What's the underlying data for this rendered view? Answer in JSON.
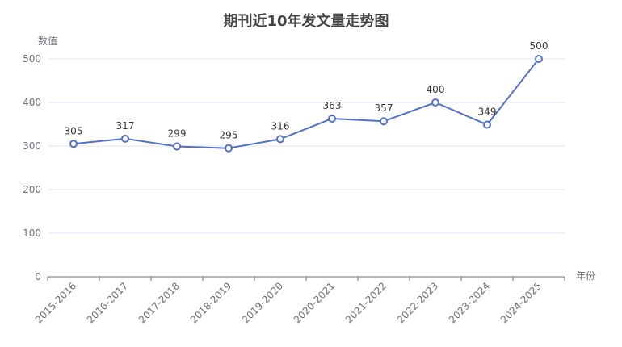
{
  "chart_data": {
    "type": "line",
    "title": "期刊近10年发文量走势图",
    "xlabel": "年份",
    "ylabel": "数值",
    "categories": [
      "2015-2016",
      "2016-2017",
      "2017-2018",
      "2018-2019",
      "2019-2020",
      "2020-2021",
      "2021-2022",
      "2022-2023",
      "2023-2024",
      "2024-2025"
    ],
    "series": [
      {
        "values": [
          305,
          317,
          299,
          295,
          316,
          363,
          357,
          400,
          349,
          500
        ]
      }
    ],
    "ylim": [
      0,
      500
    ],
    "yticks": [
      0,
      100,
      200,
      300,
      400,
      500
    ],
    "grid": true,
    "data_labels": true,
    "colors": {
      "line": "#5470c6",
      "title": "#464646",
      "axis_text": "#6e7079",
      "grid": "#e0e6f1",
      "label": "#333333"
    }
  }
}
